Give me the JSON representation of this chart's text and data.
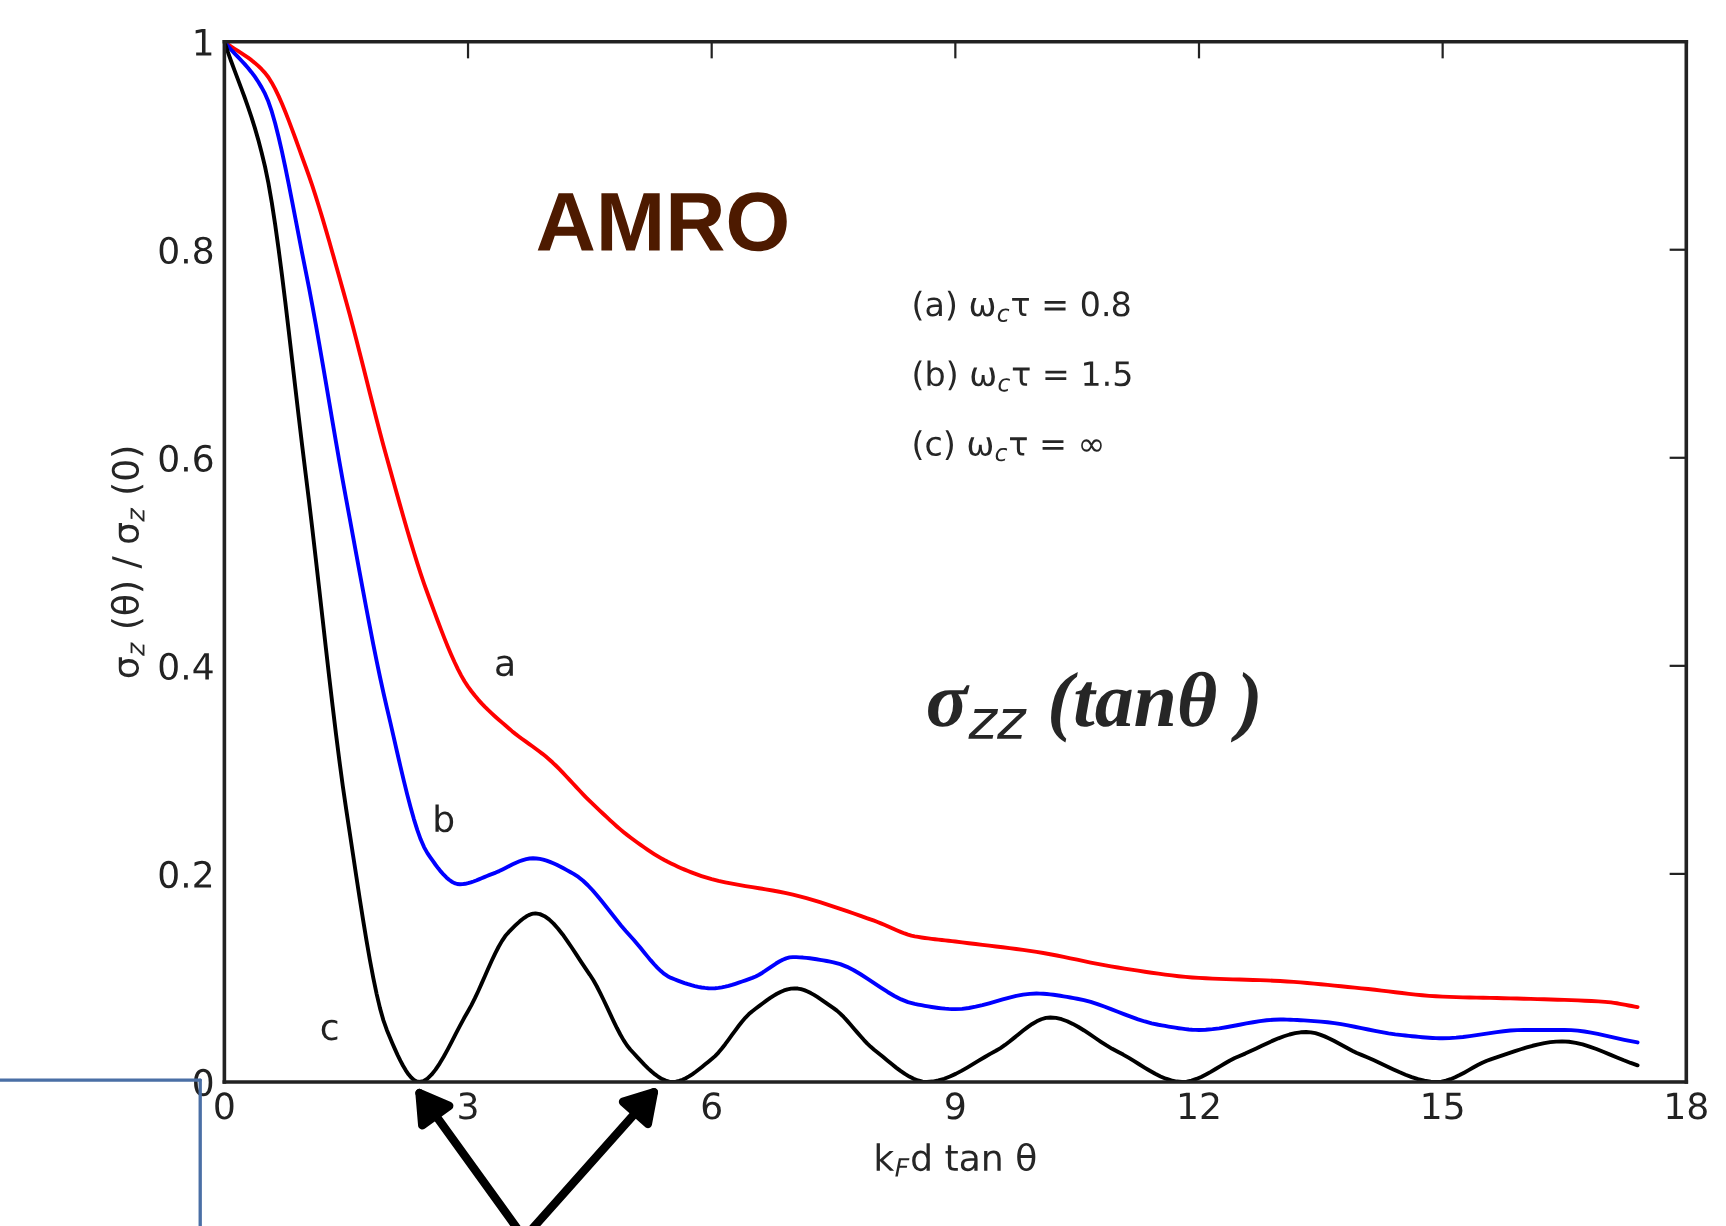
{
  "chart_data": {
    "type": "line",
    "xlabel": "k$_{F}$d tan θ",
    "ylabel": "σ$_{z}$ (θ) / σ$_{z}$ (0)",
    "xlim": [
      0,
      18
    ],
    "xticks": [
      0,
      3,
      6,
      9,
      12,
      15,
      18
    ],
    "ylim": [
      0,
      1
    ],
    "yticks": [
      0,
      0.2,
      0.4,
      0.6,
      0.8,
      1
    ],
    "grid": false,
    "legend": false,
    "marker": "none",
    "line_style": "solid",
    "annotations": [
      "AMRO",
      "(a) ω$_{c}$τ = 0.8",
      "(b) ω$_{c}$τ = 1.5",
      "(c) ω$_{c}$τ = ∞",
      "σ$_{zz}$ (tanθ )"
    ],
    "series": [
      {
        "name": "a",
        "color": "#ff0000",
        "x": [
          0,
          0.5,
          1,
          1.5,
          2,
          2.5,
          3,
          3.5,
          4,
          4.5,
          5,
          5.5,
          6,
          7,
          8,
          8.5,
          9,
          10,
          11,
          12,
          13,
          14,
          15,
          16,
          17,
          17.4
        ],
        "values": [
          1,
          0.97,
          0.88,
          0.75,
          0.6,
          0.47,
          0.38,
          0.34,
          0.31,
          0.27,
          0.235,
          0.21,
          0.195,
          0.18,
          0.155,
          0.14,
          0.135,
          0.125,
          0.11,
          0.1,
          0.097,
          0.09,
          0.082,
          0.08,
          0.077,
          0.072
        ]
      },
      {
        "name": "b",
        "color": "#0000ff",
        "x": [
          0,
          0.5,
          1,
          1.5,
          2,
          2.5,
          2.9,
          3.3,
          3.8,
          4.3,
          5,
          5.5,
          6,
          6.5,
          7,
          7.5,
          8.5,
          9,
          10,
          10.5,
          11.5,
          12,
          13,
          13.5,
          14.5,
          15,
          16,
          16.5,
          17.4
        ],
        "values": [
          1,
          0.95,
          0.78,
          0.56,
          0.36,
          0.22,
          0.19,
          0.2,
          0.215,
          0.2,
          0.14,
          0.1,
          0.09,
          0.1,
          0.12,
          0.115,
          0.075,
          0.07,
          0.085,
          0.08,
          0.055,
          0.05,
          0.06,
          0.058,
          0.045,
          0.042,
          0.05,
          0.05,
          0.038
        ]
      },
      {
        "name": "c",
        "color": "#000000",
        "x": [
          0,
          0.5,
          1,
          1.5,
          2,
          2.4,
          3,
          3.5,
          3.83,
          4.5,
          5,
          5.52,
          6,
          6.5,
          7.02,
          7.5,
          8,
          8.65,
          9.5,
          10.17,
          11,
          11.79,
          12.5,
          13.32,
          14,
          14.93,
          15.6,
          16.47,
          17.4
        ],
        "values": [
          1,
          0.88,
          0.585,
          0.262,
          0.05,
          0,
          0.068,
          0.144,
          0.162,
          0.103,
          0.031,
          0,
          0.022,
          0.068,
          0.09,
          0.071,
          0.031,
          0,
          0.03,
          0.062,
          0.029,
          0,
          0.025,
          0.048,
          0.026,
          0,
          0.022,
          0.039,
          0.016
        ]
      }
    ]
  }
}
